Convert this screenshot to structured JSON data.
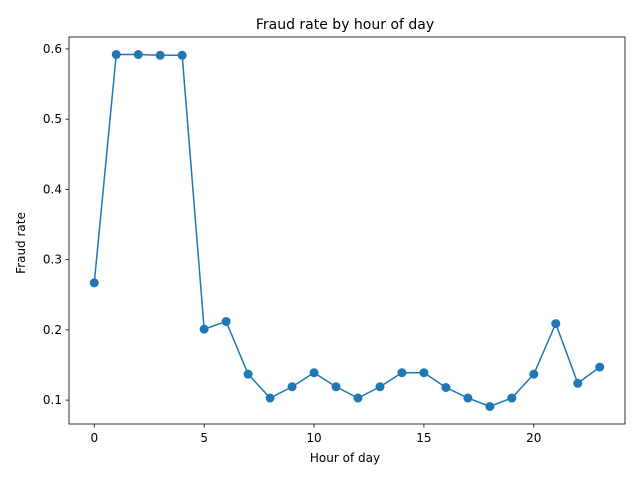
{
  "chart_data": {
    "type": "line",
    "title": "Fraud rate by hour of day",
    "xlabel": "Hour of day",
    "ylabel": "Fraud rate",
    "xlim": [
      -1.15,
      24.15
    ],
    "ylim": [
      0.066,
      0.617
    ],
    "xticks": [
      0,
      5,
      10,
      15,
      20
    ],
    "xtick_labels": [
      "0",
      "5",
      "10",
      "15",
      "20"
    ],
    "yticks": [
      0.1,
      0.2,
      0.3,
      0.4,
      0.5,
      0.6
    ],
    "ytick_labels": [
      "0.1",
      "0.2",
      "0.3",
      "0.4",
      "0.5",
      "0.6"
    ],
    "grid": false,
    "marker": "circle",
    "series": [
      {
        "color": "#1f77b4",
        "x": [
          0,
          1,
          2,
          3,
          4,
          5,
          6,
          7,
          8,
          9,
          10,
          11,
          12,
          13,
          14,
          15,
          16,
          17,
          18,
          19,
          20,
          21,
          22,
          23
        ],
        "y": [
          0.267,
          0.592,
          0.592,
          0.591,
          0.591,
          0.201,
          0.212,
          0.137,
          0.103,
          0.119,
          0.139,
          0.119,
          0.103,
          0.119,
          0.139,
          0.139,
          0.118,
          0.103,
          0.091,
          0.103,
          0.137,
          0.209,
          0.124,
          0.147
        ]
      }
    ]
  }
}
